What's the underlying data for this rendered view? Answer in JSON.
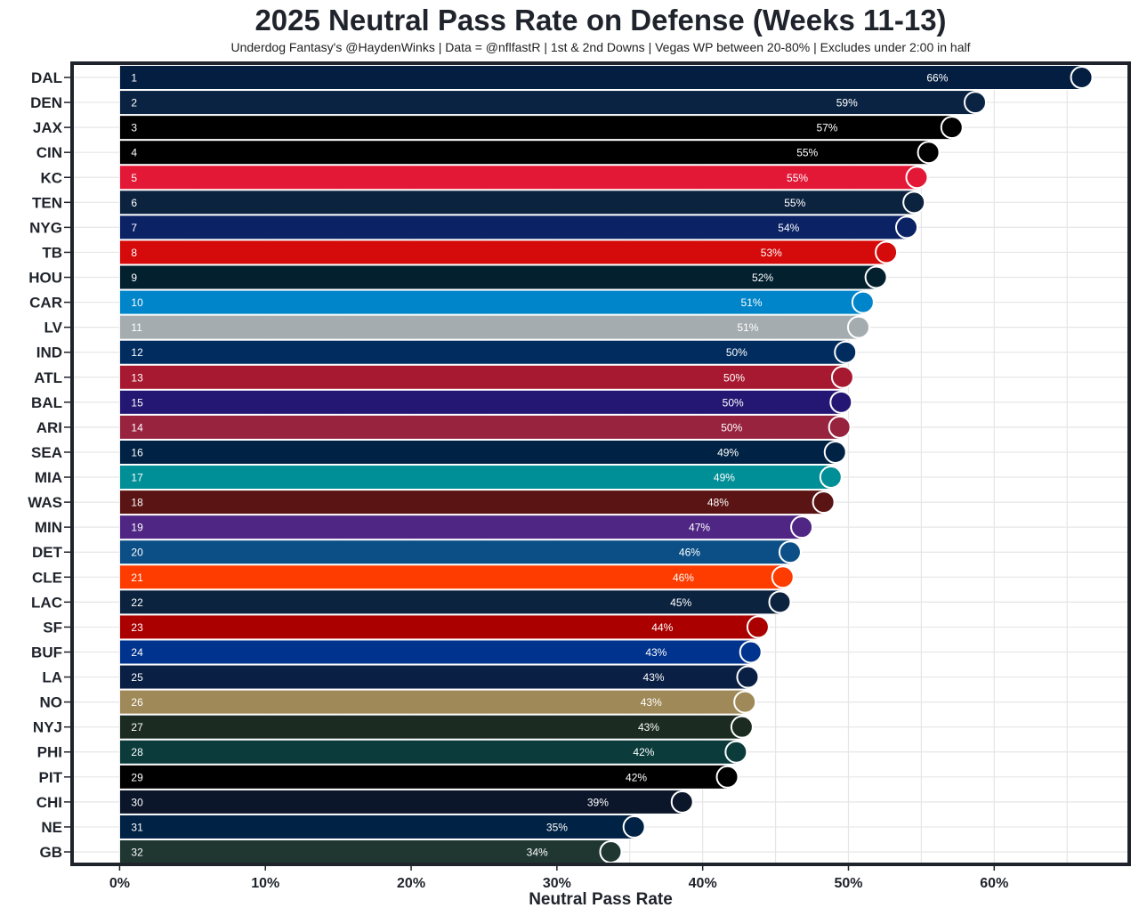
{
  "chart_data": {
    "type": "bar",
    "orientation": "horizontal",
    "title": "2025 Neutral Pass Rate on Defense (Weeks 11-13)",
    "subtitle": "Underdog Fantasy's @HaydenWinks | Data = @nflfastR | 1st & 2nd Downs | Vegas WP between 20-80% | Excludes under 2:00 in half",
    "xlabel": "Neutral Pass Rate",
    "ylabel": "",
    "xlim": [
      -3.2,
      69.2
    ],
    "xticks": [
      0,
      10,
      20,
      30,
      40,
      50,
      60
    ],
    "xtick_labels": [
      "0%",
      "10%",
      "20%",
      "30%",
      "40%",
      "50%",
      "60%"
    ],
    "grid": true,
    "bars": [
      {
        "team": "DAL",
        "rank": "1",
        "value": 66.0,
        "label": "66%",
        "color": "#041E42"
      },
      {
        "team": "DEN",
        "rank": "2",
        "value": 58.7,
        "label": "59%",
        "color": "#0A2343"
      },
      {
        "team": "JAX",
        "rank": "3",
        "value": 57.1,
        "label": "57%",
        "color": "#000000"
      },
      {
        "team": "CIN",
        "rank": "4",
        "value": 55.5,
        "label": "55%",
        "color": "#000000"
      },
      {
        "team": "KC",
        "rank": "5",
        "value": 54.7,
        "label": "55%",
        "color": "#E31837"
      },
      {
        "team": "TEN",
        "rank": "6",
        "value": 54.5,
        "label": "55%",
        "color": "#0C2340"
      },
      {
        "team": "NYG",
        "rank": "7",
        "value": 54.0,
        "label": "54%",
        "color": "#0B2265"
      },
      {
        "team": "TB",
        "rank": "8",
        "value": 52.6,
        "label": "53%",
        "color": "#D50A0A"
      },
      {
        "team": "HOU",
        "rank": "9",
        "value": 51.9,
        "label": "52%",
        "color": "#03202F"
      },
      {
        "team": "CAR",
        "rank": "10",
        "value": 51.0,
        "label": "51%",
        "color": "#0085CA"
      },
      {
        "team": "LV",
        "rank": "11",
        "value": 50.7,
        "label": "51%",
        "color": "#A5ACAF"
      },
      {
        "team": "IND",
        "rank": "12",
        "value": 49.8,
        "label": "50%",
        "color": "#002C5F"
      },
      {
        "team": "ATL",
        "rank": "13",
        "value": 49.6,
        "label": "50%",
        "color": "#A71930"
      },
      {
        "team": "BAL",
        "rank": "15",
        "value": 49.5,
        "label": "50%",
        "color": "#241773"
      },
      {
        "team": "ARI",
        "rank": "14",
        "value": 49.4,
        "label": "50%",
        "color": "#97233F"
      },
      {
        "team": "SEA",
        "rank": "16",
        "value": 49.1,
        "label": "49%",
        "color": "#002244"
      },
      {
        "team": "MIA",
        "rank": "17",
        "value": 48.8,
        "label": "49%",
        "color": "#008E97"
      },
      {
        "team": "WAS",
        "rank": "18",
        "value": 48.3,
        "label": "48%",
        "color": "#5A1414"
      },
      {
        "team": "MIN",
        "rank": "19",
        "value": 46.8,
        "label": "47%",
        "color": "#4F2683"
      },
      {
        "team": "DET",
        "rank": "20",
        "value": 46.0,
        "label": "46%",
        "color": "#0B4F86"
      },
      {
        "team": "CLE",
        "rank": "21",
        "value": 45.5,
        "label": "46%",
        "color": "#FF3C00"
      },
      {
        "team": "LAC",
        "rank": "22",
        "value": 45.3,
        "label": "45%",
        "color": "#0C2340"
      },
      {
        "team": "SF",
        "rank": "23",
        "value": 43.8,
        "label": "44%",
        "color": "#AA0000"
      },
      {
        "team": "BUF",
        "rank": "24",
        "value": 43.3,
        "label": "43%",
        "color": "#00338D"
      },
      {
        "team": "LA",
        "rank": "25",
        "value": 43.1,
        "label": "43%",
        "color": "#0A1F44"
      },
      {
        "team": "NO",
        "rank": "26",
        "value": 42.9,
        "label": "43%",
        "color": "#9F8958"
      },
      {
        "team": "NYJ",
        "rank": "27",
        "value": 42.7,
        "label": "43%",
        "color": "#1C2B22"
      },
      {
        "team": "PHI",
        "rank": "28",
        "value": 42.3,
        "label": "42%",
        "color": "#0B3B3B"
      },
      {
        "team": "PIT",
        "rank": "29",
        "value": 41.7,
        "label": "42%",
        "color": "#000000"
      },
      {
        "team": "CHI",
        "rank": "30",
        "value": 38.6,
        "label": "39%",
        "color": "#0B162A"
      },
      {
        "team": "NE",
        "rank": "31",
        "value": 35.3,
        "label": "35%",
        "color": "#002244"
      },
      {
        "team": "GB",
        "rank": "32",
        "value": 33.7,
        "label": "34%",
        "color": "#203731"
      }
    ]
  }
}
